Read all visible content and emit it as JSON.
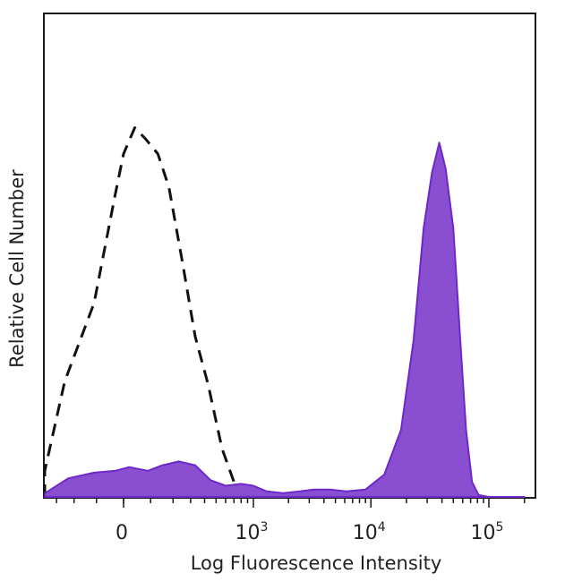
{
  "chart_data": {
    "type": "area",
    "xlabel": "Log Fluorescence Intensity",
    "ylabel": "Relative Cell Number",
    "x_scale": "biexponential",
    "xlim": [
      -1000,
      200000
    ],
    "ylim": [
      0,
      1.0
    ],
    "x_ticks": [
      {
        "value": 0,
        "base": "0",
        "exp": ""
      },
      {
        "value": 1000,
        "base": "10",
        "exp": "3"
      },
      {
        "value": 10000,
        "base": "10",
        "exp": "4"
      },
      {
        "value": 100000,
        "base": "10",
        "exp": "5"
      }
    ],
    "grid": false,
    "legend": "none",
    "series": [
      {
        "style": "dashed",
        "color": "#111111",
        "fill": "none",
        "points": [
          [
            -700,
            0.0
          ],
          [
            -420,
            0.07
          ],
          [
            -250,
            0.31
          ],
          [
            -110,
            0.52
          ],
          [
            -30,
            0.81
          ],
          [
            0,
            0.92
          ],
          [
            40,
            0.99
          ],
          [
            80,
            0.96
          ],
          [
            130,
            0.92
          ],
          [
            180,
            0.83
          ],
          [
            250,
            0.63
          ],
          [
            330,
            0.43
          ],
          [
            430,
            0.3
          ],
          [
            560,
            0.13
          ],
          [
            700,
            0.04
          ],
          [
            850,
            0.0
          ]
        ]
      },
      {
        "style": "filled",
        "color": "#6d28c9",
        "fill": "#8a4fd0",
        "points": [
          [
            -700,
            0.0
          ],
          [
            -380,
            0.01
          ],
          [
            -230,
            0.05
          ],
          [
            -110,
            0.065
          ],
          [
            -30,
            0.07
          ],
          [
            20,
            0.08
          ],
          [
            90,
            0.07
          ],
          [
            150,
            0.085
          ],
          [
            230,
            0.095
          ],
          [
            330,
            0.085
          ],
          [
            450,
            0.045
          ],
          [
            600,
            0.03
          ],
          [
            800,
            0.035
          ],
          [
            1000,
            0.03
          ],
          [
            1300,
            0.015
          ],
          [
            1800,
            0.01
          ],
          [
            2500,
            0.015
          ],
          [
            3300,
            0.02
          ],
          [
            4500,
            0.02
          ],
          [
            6200,
            0.015
          ],
          [
            9000,
            0.02
          ],
          [
            13000,
            0.06
          ],
          [
            18000,
            0.18
          ],
          [
            23000,
            0.42
          ],
          [
            28000,
            0.72
          ],
          [
            33000,
            0.87
          ],
          [
            38000,
            0.95
          ],
          [
            43000,
            0.88
          ],
          [
            50000,
            0.72
          ],
          [
            57000,
            0.43
          ],
          [
            64000,
            0.18
          ],
          [
            72000,
            0.04
          ],
          [
            82000,
            0.005
          ],
          [
            100000,
            0.0
          ],
          [
            200000,
            0.0
          ]
        ]
      }
    ]
  }
}
